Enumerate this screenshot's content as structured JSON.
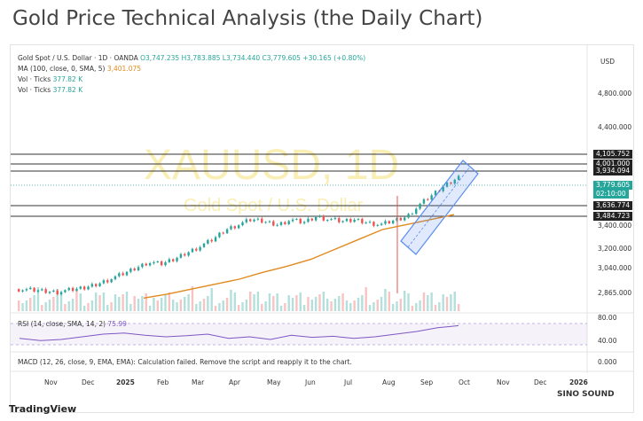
{
  "page": {
    "title": "Gold Price Technical Analysis (the Daily Chart)"
  },
  "header": {
    "symbol_line": "Gold Spot / U.S. Dollar · 1D · OANDA",
    "ohlc": "O3,747.235  H3,783.885  L3,734.440  C3,779.605  +30.165 (+0.80%)",
    "ma_label": "MA (100, close, 0, SMA, 5)",
    "ma_value": "3,401.075",
    "vol1_label": "Vol · Ticks",
    "vol1_value": "377.82 K",
    "vol2_label": "Vol · Ticks",
    "vol2_value": "377.82 K"
  },
  "watermark": {
    "symbol": "XAUUSD, 1D",
    "name": "Gold Spot / U.S. Dollar"
  },
  "currency": "USD",
  "axis_ticks": [
    "4,800.000",
    "4,400.000",
    "3,400.000",
    "3,200.000",
    "3,040.000",
    "2,865.000"
  ],
  "levels": [
    "4,105.752",
    "4,001.000",
    "3,934.094",
    "3,636.774",
    "3,484.723"
  ],
  "price_tag": {
    "price": "3,779.605",
    "countdown": "02:10:00"
  },
  "rsi": {
    "label": "RSI (14, close, SMA, 14, 2)",
    "value": "75.99",
    "ticks": [
      "80.00",
      "40.00"
    ]
  },
  "macd": {
    "label": "MACD (12, 26, close, 9, EMA, EMA): Calculation failed. Remove the script and reapply it to the chart.",
    "tick": "0.000"
  },
  "months": [
    "Nov",
    "Dec",
    "2025",
    "Feb",
    "Mar",
    "Apr",
    "May",
    "Jun",
    "Jul",
    "Aug",
    "Sep",
    "Oct",
    "Nov",
    "Dec",
    "2026"
  ],
  "footer": {
    "logo": "TradingView",
    "brand": "SINO SOUND"
  },
  "colors": {
    "up": "#26a69a",
    "down": "#ef5350",
    "ma": "#e08a1e",
    "rsi": "#7e57c2",
    "channel": "#5b8def"
  },
  "chart_data": {
    "type": "candlestick",
    "title": "Gold Spot / U.S. Dollar · 1D · OANDA",
    "y_unit": "USD",
    "x_months": [
      "Nov",
      "Dec",
      "2025",
      "Feb",
      "Mar",
      "Apr",
      "May",
      "Jun",
      "Jul",
      "Aug",
      "Sep",
      "Oct"
    ],
    "close_path": [
      2650,
      2640,
      2630,
      2620,
      2640,
      2660,
      2700,
      2750,
      2800,
      2860,
      2920,
      2900,
      2950,
      3020,
      3080,
      3150,
      3250,
      3300,
      3350,
      3330,
      3300,
      3350,
      3320,
      3380,
      3350,
      3330,
      3350,
      3320,
      3300,
      3340,
      3380,
      3500,
      3600,
      3700,
      3780
    ],
    "ma_100": [
      2560,
      2600,
      2650,
      2700,
      2750,
      2820,
      2880,
      2950,
      3050,
      3150,
      3250,
      3300,
      3350,
      3401
    ],
    "rsi_values": [
      52,
      48,
      50,
      55,
      60,
      62,
      58,
      55,
      57,
      60,
      52,
      55,
      50,
      58,
      54,
      56,
      52,
      55,
      60,
      65,
      72,
      76
    ]
  }
}
